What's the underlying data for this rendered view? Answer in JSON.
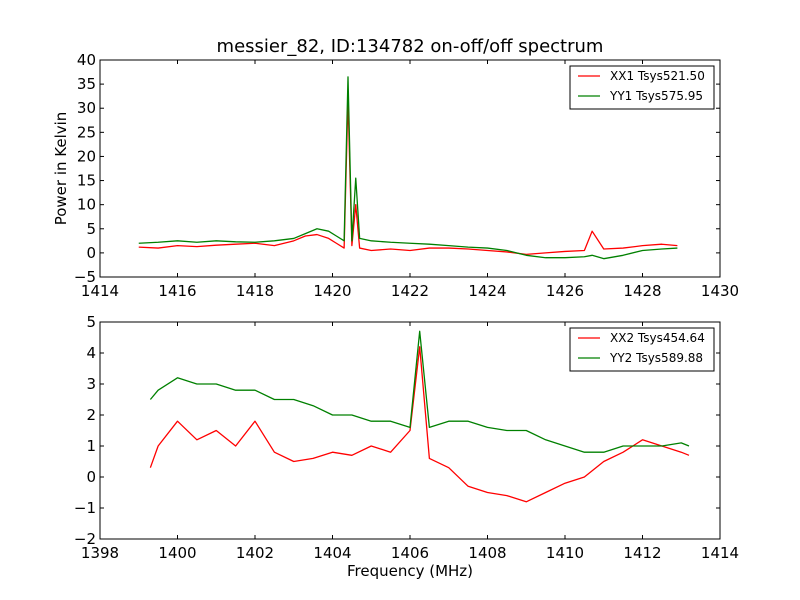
{
  "chart_data": [
    {
      "type": "line",
      "title": "messier_82, ID:134782 on-off/off spectrum",
      "xlabel": "",
      "ylabel": "Power in Kelvin",
      "xlim": [
        1414,
        1430
      ],
      "ylim": [
        -5,
        40
      ],
      "xticks": [
        1414,
        1416,
        1418,
        1420,
        1422,
        1424,
        1426,
        1428,
        1430
      ],
      "yticks": [
        -5,
        0,
        5,
        10,
        15,
        20,
        25,
        30,
        35,
        40
      ],
      "legend_position": "upper right",
      "grid": false,
      "x": [
        1415.0,
        1415.5,
        1416.0,
        1416.5,
        1417.0,
        1417.5,
        1418.0,
        1418.5,
        1419.0,
        1419.3,
        1419.6,
        1419.9,
        1420.1,
        1420.3,
        1420.4,
        1420.5,
        1420.6,
        1420.7,
        1421.0,
        1421.5,
        1422.0,
        1422.5,
        1423.0,
        1423.5,
        1424.0,
        1424.5,
        1425.0,
        1425.5,
        1426.0,
        1426.5,
        1426.7,
        1427.0,
        1427.5,
        1428.0,
        1428.5,
        1428.9
      ],
      "series": [
        {
          "name": "XX1 Tsys521.50",
          "color": "#ff0000",
          "values": [
            1.2,
            1.0,
            1.5,
            1.3,
            1.6,
            1.8,
            2.0,
            1.5,
            2.5,
            3.5,
            3.8,
            3.0,
            2.0,
            1.0,
            32.0,
            1.5,
            10.0,
            1.0,
            0.5,
            0.8,
            0.5,
            1.0,
            1.0,
            0.8,
            0.5,
            0.2,
            -0.3,
            0.0,
            0.3,
            0.5,
            4.5,
            0.8,
            1.0,
            1.5,
            1.8,
            1.5
          ]
        },
        {
          "name": "YY1 Tsys575.95",
          "color": "#008000",
          "values": [
            2.0,
            2.2,
            2.5,
            2.2,
            2.5,
            2.3,
            2.2,
            2.5,
            3.0,
            4.0,
            5.0,
            4.5,
            3.5,
            2.5,
            36.5,
            2.5,
            15.5,
            3.0,
            2.5,
            2.2,
            2.0,
            1.8,
            1.5,
            1.2,
            1.0,
            0.5,
            -0.5,
            -1.0,
            -1.0,
            -0.8,
            -0.5,
            -1.2,
            -0.5,
            0.5,
            0.8,
            1.0
          ]
        }
      ]
    },
    {
      "type": "line",
      "title": "",
      "xlabel": "Frequency (MHz)",
      "ylabel": "",
      "xlim": [
        1398,
        1414
      ],
      "ylim": [
        -2,
        5
      ],
      "xticks": [
        1398,
        1400,
        1402,
        1404,
        1406,
        1408,
        1410,
        1412,
        1414
      ],
      "yticks": [
        -2,
        -1,
        0,
        1,
        2,
        3,
        4,
        5
      ],
      "legend_position": "upper right",
      "grid": false,
      "x": [
        1399.3,
        1399.5,
        1400.0,
        1400.5,
        1401.0,
        1401.5,
        1402.0,
        1402.5,
        1403.0,
        1403.5,
        1404.0,
        1404.5,
        1405.0,
        1405.5,
        1406.0,
        1406.25,
        1406.5,
        1407.0,
        1407.5,
        1408.0,
        1408.5,
        1409.0,
        1409.5,
        1410.0,
        1410.5,
        1411.0,
        1411.5,
        1412.0,
        1412.5,
        1413.0,
        1413.2
      ],
      "series": [
        {
          "name": "XX2 Tsys454.64",
          "color": "#ff0000",
          "values": [
            0.3,
            1.0,
            1.8,
            1.2,
            1.5,
            1.0,
            1.8,
            0.8,
            0.5,
            0.6,
            0.8,
            0.7,
            1.0,
            0.8,
            1.5,
            4.2,
            0.6,
            0.3,
            -0.3,
            -0.5,
            -0.6,
            -0.8,
            -0.5,
            -0.2,
            0.0,
            0.5,
            0.8,
            1.2,
            1.0,
            0.8,
            0.7
          ]
        },
        {
          "name": "YY2 Tsys589.88",
          "color": "#008000",
          "values": [
            2.5,
            2.8,
            3.2,
            3.0,
            3.0,
            2.8,
            2.8,
            2.5,
            2.5,
            2.3,
            2.0,
            2.0,
            1.8,
            1.8,
            1.6,
            4.7,
            1.6,
            1.8,
            1.8,
            1.6,
            1.5,
            1.5,
            1.2,
            1.0,
            0.8,
            0.8,
            1.0,
            1.0,
            1.0,
            1.1,
            1.0
          ]
        }
      ]
    }
  ]
}
